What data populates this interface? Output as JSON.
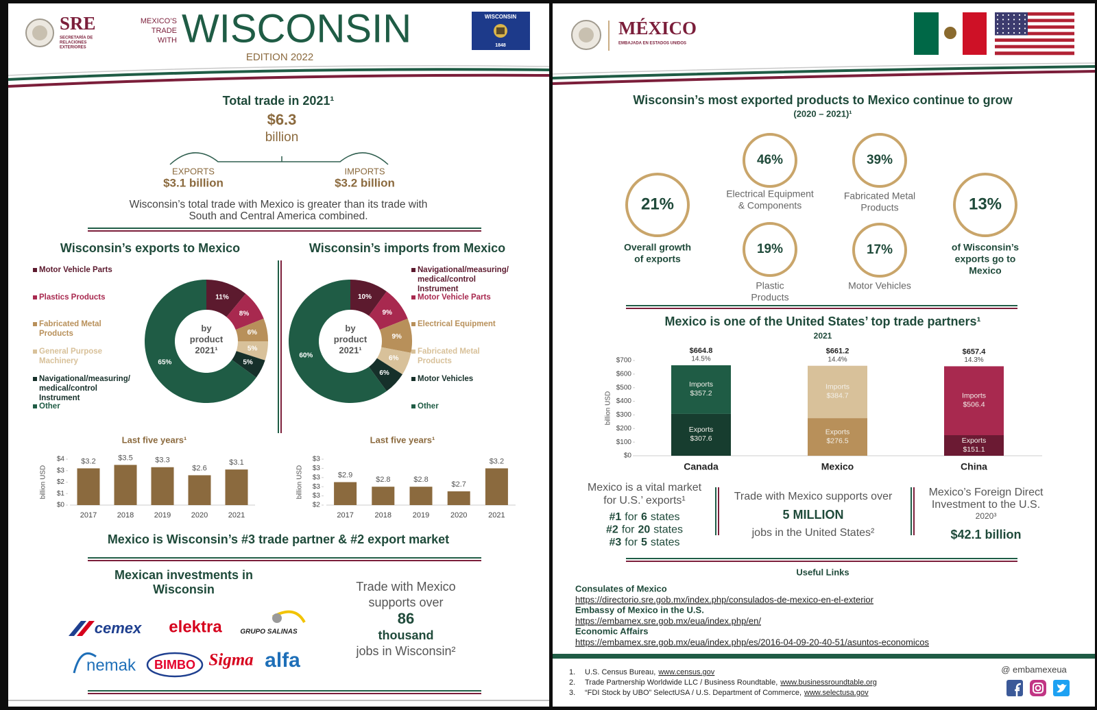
{
  "left_page": {
    "header": {
      "sre": "SRE",
      "sre_subtitle": [
        "SECRETARÍA DE",
        "RELACIONES",
        "EXTERIORES"
      ],
      "kicker": [
        "MEXICO’S",
        "TRADE",
        "WITH"
      ],
      "state": "WISCONSIN",
      "edition": "EDITION 2022",
      "flag": {
        "label": "WISCONSIN",
        "year": "1848"
      }
    },
    "total_trade": {
      "title": "Total trade in 2021¹",
      "amount": "$6.3",
      "unit": "billion",
      "exports_label": "EXPORTS",
      "exports_value": "$3.1 billion",
      "imports_label": "IMPORTS",
      "imports_value": "$3.2 billion",
      "note": [
        "Wisconsin’s total trade with Mexico is greater than its trade with",
        "South and Central America combined."
      ]
    },
    "ranking": "Mexico is Wisconsin’s #3 trade partner & #2 export market",
    "investments": {
      "title": [
        "Mexican investments in",
        "Wisconsin"
      ],
      "logos": [
        "cemex",
        "elektra",
        "GRUPO SALINAS",
        "nemak",
        "BIMBO",
        "Sigma",
        "alfa"
      ]
    },
    "jobs": {
      "lines": [
        "Trade with Mexico",
        "supports over"
      ],
      "number": "86",
      "unit": "thousand",
      "tail": "jobs in Wisconsin²"
    }
  },
  "right_page": {
    "header": {
      "country": "MÉXICO",
      "embassy": "EMBAJADA EN ESTADOS UNIDOS"
    },
    "growth": {
      "title": "Wisconsin’s most exported products to Mexico continue to grow",
      "period": "(2020 – 2021)¹",
      "items": [
        {
          "value": "21%",
          "label": [
            "Overall growth",
            "of exports"
          ]
        },
        {
          "value": "46%",
          "label": [
            "Electrical Equipment",
            "& Components"
          ]
        },
        {
          "value": "39%",
          "label": [
            "Fabricated Metal",
            "Products"
          ]
        },
        {
          "value": "19%",
          "label": [
            "Plastic",
            "Products"
          ]
        },
        {
          "value": "17%",
          "label": [
            "Motor Vehicles"
          ]
        },
        {
          "value": "13%",
          "label": [
            "of Wisconsin’s",
            "exports go to",
            "Mexico"
          ]
        }
      ]
    },
    "stats": {
      "market": {
        "lines": [
          "Mexico is a vital market",
          "for U.S.’ exports¹"
        ],
        "ranks": [
          {
            "rank": "#1",
            "prep": "for",
            "count": "6",
            "unit": "states"
          },
          {
            "rank": "#2",
            "prep": "for",
            "count": "20",
            "unit": "states"
          },
          {
            "rank": "#3",
            "prep": "for",
            "count": "5",
            "unit": "states"
          }
        ]
      },
      "jobs": {
        "lines": [
          "Trade with Mexico supports over"
        ],
        "number": "5 MILLION",
        "tail": "jobs in the United States²"
      },
      "fdi": {
        "lines": [
          "Mexico’s Foreign Direct",
          "Investment to the U.S."
        ],
        "year": "2020³",
        "amount": "$42.1 billion"
      }
    },
    "links": {
      "title": "Useful Links",
      "items": [
        {
          "label": "Consulates of Mexico",
          "url": "https://directorio.sre.gob.mx/index.php/consulados-de-mexico-en-el-exterior"
        },
        {
          "label": "Embassy of Mexico in the U.S.",
          "url": "https://embamex.sre.gob.mx/eua/index.php/en/"
        },
        {
          "label": "Economic Affairs",
          "url": "https://embamex.sre.gob.mx/eua/index.php/es/2016-04-09-20-40-51/asuntos-economicos"
        }
      ]
    },
    "footnotes": [
      {
        "number": "1.",
        "text": "U.S. Census Bureau,",
        "link": "www.census.gov"
      },
      {
        "number": "2.",
        "text": "Trade Partnership Worldwide LLC / Business Roundtable,",
        "link": "www.businessroundtable.org"
      },
      {
        "number": "3.",
        "text": "“FDI Stock by UBO” SelectUSA / U.S. Department of Commerce,",
        "link": "www.selectusa.gov"
      }
    ],
    "social": "@ embamexeua"
  },
  "chart_data": [
    {
      "type": "donut",
      "title": "Wisconsin’s exports to Mexico",
      "center_label": [
        "by",
        "product",
        "2021¹"
      ],
      "categories": [
        "Motor Vehicle Parts",
        "Plastics Products",
        "Fabricated Metal Products",
        "General Purpose Machinery",
        "Navigational/measuring/ medical/control Instrument",
        "Other"
      ],
      "values": [
        11,
        8,
        6,
        5,
        5,
        65
      ],
      "value_labels": [
        "11%",
        "8%",
        "6%",
        "5%",
        "5%",
        "65%"
      ],
      "colors": [
        "#5c1a2e",
        "#a8294f",
        "#b8905a",
        "#d8c19a",
        "#16302a",
        "#1f5c45"
      ]
    },
    {
      "type": "donut",
      "title": "Wisconsin’s imports from Mexico",
      "center_label": [
        "by",
        "product",
        "2021¹"
      ],
      "categories": [
        "Navigational/measuring/ medical/control Instrument",
        "Motor Vehicle Parts",
        "Electrical Equipment",
        "Fabricated Metal Products",
        "Motor Vehicles",
        "Other"
      ],
      "values": [
        10,
        9,
        9,
        6,
        6,
        60
      ],
      "value_labels": [
        "10%",
        "9%",
        "9%",
        "6%",
        "6%",
        "60%"
      ],
      "colors": [
        "#5c1a2e",
        "#a8294f",
        "#b8905a",
        "#d8c19a",
        "#16302a",
        "#1f5c45"
      ]
    },
    {
      "type": "bar",
      "title": "Last five years¹",
      "ylabel": "billion USD",
      "categories": [
        "2017",
        "2018",
        "2019",
        "2020",
        "2021"
      ],
      "values": [
        3.2,
        3.5,
        3.3,
        2.6,
        3.1
      ],
      "value_labels": [
        "$3.2",
        "$3.5",
        "$3.3",
        "$2.6",
        "$3.1"
      ],
      "color": "#8b6a3e",
      "ylim": [
        0,
        4
      ],
      "yticks": [
        {
          "value": 0,
          "label": "$0"
        },
        {
          "value": 1,
          "label": "$1"
        },
        {
          "value": 2,
          "label": "$2"
        },
        {
          "value": 3,
          "label": "$3"
        },
        {
          "value": 4,
          "label": "$4"
        }
      ]
    },
    {
      "type": "bar",
      "title": "Last five years¹",
      "ylabel": "billion USD",
      "categories": [
        "2017",
        "2018",
        "2019",
        "2020",
        "2021"
      ],
      "values": [
        2.9,
        2.8,
        2.8,
        2.7,
        3.2
      ],
      "value_labels": [
        "$2.9",
        "$2.8",
        "$2.8",
        "$2.7",
        "$3.2"
      ],
      "color": "#8b6a3e",
      "ylim": [
        2.4,
        3.4
      ],
      "yticks": [
        {
          "value": 2.4,
          "label": "$2"
        },
        {
          "value": 2.6,
          "label": "$3"
        },
        {
          "value": 2.8,
          "label": "$3"
        },
        {
          "value": 3.0,
          "label": "$3"
        },
        {
          "value": 3.2,
          "label": "$3"
        },
        {
          "value": 3.4,
          "label": "$3"
        }
      ]
    },
    {
      "type": "stacked_bar",
      "title": "Mexico is one of the United States’ top trade partners¹",
      "subtitle": "2021",
      "ylabel": "billion USD",
      "categories": [
        "Canada",
        "Mexico",
        "China"
      ],
      "series": [
        {
          "name": "Exports",
          "colors": [
            "#173d2f",
            "#b8905a",
            "#6b1a33"
          ],
          "values": [
            307.6,
            276.5,
            151.1
          ],
          "value_labels": [
            "$307.6",
            "$276.5",
            "$151.1"
          ]
        },
        {
          "name": "Imports",
          "colors": [
            "#1f5c45",
            "#d8c19a",
            "#a8294f"
          ],
          "values": [
            357.2,
            384.7,
            506.4
          ],
          "value_labels": [
            "$357.2",
            "$384.7",
            "$506.4"
          ]
        }
      ],
      "total_labels": [
        "$664.8",
        "$661.2",
        "$657.4"
      ],
      "share_labels": [
        "14.5%",
        "14.4%",
        "14.3%"
      ],
      "ylim": [
        0,
        700
      ],
      "yticks": [
        {
          "value": 0,
          "label": "$0"
        },
        {
          "value": 100,
          "label": "$100"
        },
        {
          "value": 200,
          "label": "$200"
        },
        {
          "value": 300,
          "label": "$300"
        },
        {
          "value": 400,
          "label": "$400"
        },
        {
          "value": 500,
          "label": "$500"
        },
        {
          "value": 600,
          "label": "$600"
        },
        {
          "value": 700,
          "label": "$700"
        }
      ]
    }
  ]
}
